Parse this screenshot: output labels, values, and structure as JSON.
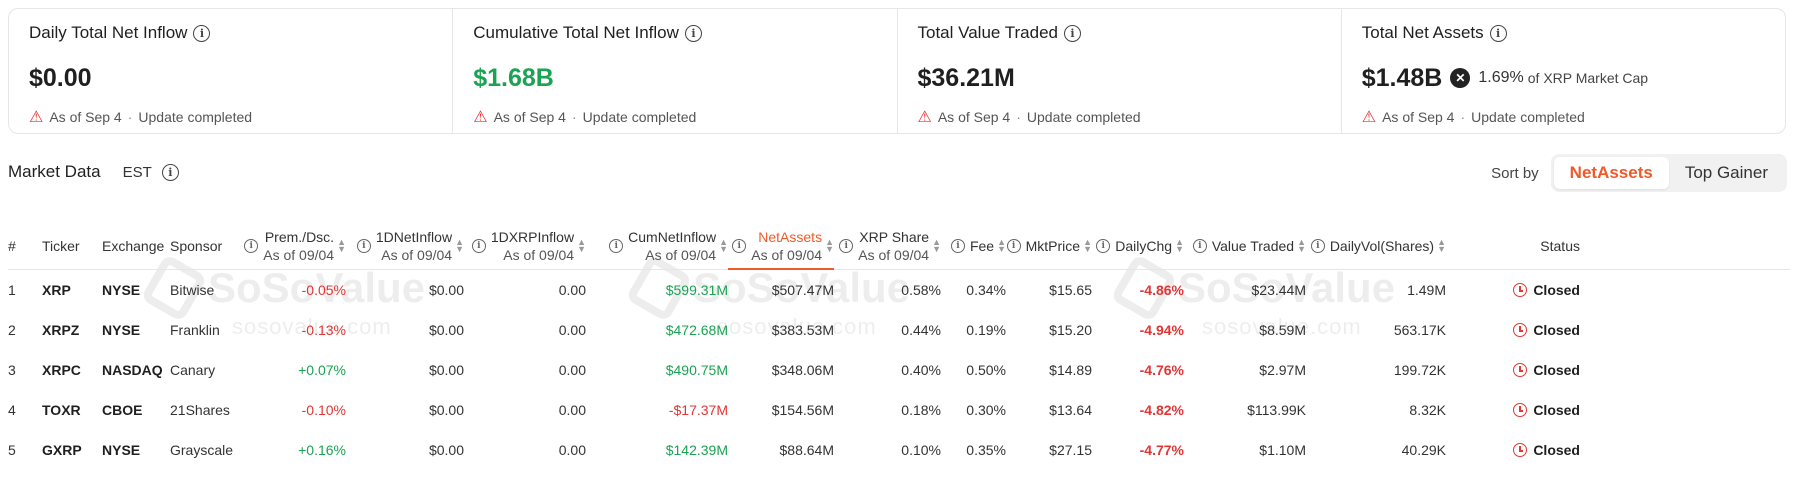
{
  "summary": [
    {
      "title": "Daily Total Net Inflow",
      "value": "$0.00",
      "color": "normal",
      "foot_date": "As of Sep 4",
      "foot_status": "Update completed"
    },
    {
      "title": "Cumulative Total Net Inflow",
      "value": "$1.68B",
      "color": "green",
      "foot_date": "As of Sep 4",
      "foot_status": "Update completed"
    },
    {
      "title": "Total Value Traded",
      "value": "$36.21M",
      "color": "normal",
      "foot_date": "As of Sep 4",
      "foot_status": "Update completed"
    },
    {
      "title": "Total Net Assets",
      "value": "$1.48B",
      "color": "normal",
      "share_pct": "1.69%",
      "share_text": "of XRP Market Cap",
      "foot_date": "As of Sep 4",
      "foot_status": "Update completed"
    }
  ],
  "market": {
    "title": "Market Data",
    "timezone": "EST",
    "sort_label": "Sort by",
    "sort_options": [
      "NetAssets",
      "Top Gainer"
    ],
    "sort_active": "NetAssets"
  },
  "watermark": {
    "brand": "SoSoValue",
    "domain": "sosovalue.com"
  },
  "columns": {
    "num": "#",
    "ticker": "Ticker",
    "exchange": "Exchange",
    "sponsor": "Sponsor",
    "prem": "Prem./Dsc.",
    "inflow": "1DNetInflow",
    "xrpinflow": "1DXRPInflow",
    "cum": "CumNetInflow",
    "net": "NetAssets",
    "share": "XRP Share",
    "fee": "Fee",
    "mkt": "MktPrice",
    "chg": "DailyChg",
    "vt": "Value Traded",
    "vol": "DailyVol(Shares)",
    "status": "Status",
    "asof": "As of 09/04"
  },
  "rows": [
    {
      "num": "1",
      "ticker": "XRP",
      "exchange": "NYSE",
      "sponsor": "Bitwise",
      "prem": "-0.05%",
      "inflow": "$0.00",
      "xrpinflow": "0.00",
      "cum": "$599.31M",
      "net": "$507.47M",
      "share": "0.58%",
      "fee": "0.34%",
      "mkt": "$15.65",
      "chg": "-4.86%",
      "vt": "$23.44M",
      "vol": "1.49M",
      "status": "Closed"
    },
    {
      "num": "2",
      "ticker": "XRPZ",
      "exchange": "NYSE",
      "sponsor": "Franklin",
      "prem": "-0.13%",
      "inflow": "$0.00",
      "xrpinflow": "0.00",
      "cum": "$472.68M",
      "net": "$383.53M",
      "share": "0.44%",
      "fee": "0.19%",
      "mkt": "$15.20",
      "chg": "-4.94%",
      "vt": "$8.59M",
      "vol": "563.17K",
      "status": "Closed"
    },
    {
      "num": "3",
      "ticker": "XRPC",
      "exchange": "NASDAQ",
      "sponsor": "Canary",
      "prem": "+0.07%",
      "inflow": "$0.00",
      "xrpinflow": "0.00",
      "cum": "$490.75M",
      "net": "$348.06M",
      "share": "0.40%",
      "fee": "0.50%",
      "mkt": "$14.89",
      "chg": "-4.76%",
      "vt": "$2.97M",
      "vol": "199.72K",
      "status": "Closed"
    },
    {
      "num": "4",
      "ticker": "TOXR",
      "exchange": "CBOE",
      "sponsor": "21Shares",
      "prem": "-0.10%",
      "inflow": "$0.00",
      "xrpinflow": "0.00",
      "cum": "-$17.37M",
      "net": "$154.56M",
      "share": "0.18%",
      "fee": "0.30%",
      "mkt": "$13.64",
      "chg": "-4.82%",
      "vt": "$113.99K",
      "vol": "8.32K",
      "status": "Closed"
    },
    {
      "num": "5",
      "ticker": "GXRP",
      "exchange": "NYSE",
      "sponsor": "Grayscale",
      "prem": "+0.16%",
      "inflow": "$0.00",
      "xrpinflow": "0.00",
      "cum": "$142.39M",
      "net": "$88.64M",
      "share": "0.10%",
      "fee": "0.35%",
      "mkt": "$27.15",
      "chg": "-4.77%",
      "vt": "$1.10M",
      "vol": "40.29K",
      "status": "Closed"
    }
  ]
}
